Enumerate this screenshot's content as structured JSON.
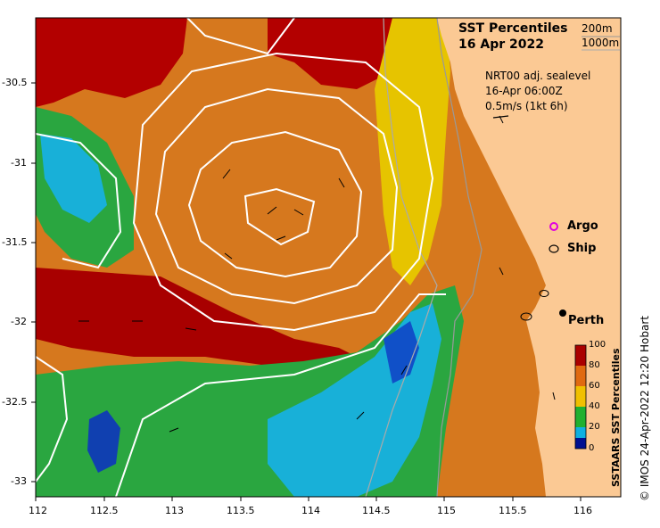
{
  "title": {
    "line1": "SST Percentiles",
    "line2": "16 Apr 2022"
  },
  "depth_legend": {
    "d1": "200m",
    "d2": "1000m"
  },
  "info": {
    "line1": "NRT00 adj. sealevel",
    "line2": "16-Apr 06:00Z",
    "line3": "0.5m/s (1kt 6h)"
  },
  "legend": {
    "argo": "Argo",
    "ship": "Ship",
    "perth": "Perth"
  },
  "colorbar": {
    "title": "SSTAARS SST Percentiles",
    "ticks": [
      "100",
      "80",
      "60",
      "40",
      "20",
      "0"
    ],
    "colors": [
      "#aa0000",
      "#e06a10",
      "#f0c000",
      "#20b030",
      "#10b0e0",
      "#001090"
    ]
  },
  "axes": {
    "x_ticks": [
      "112",
      "112.5",
      "113",
      "113.5",
      "114",
      "114.5",
      "115",
      "115.5",
      "116"
    ],
    "y_ticks": [
      "-30.5",
      "-31",
      "-31.5",
      "-32",
      "-32.5",
      "-33"
    ],
    "lon_range": [
      112,
      116.3
    ],
    "lat_range": [
      -33.1,
      -30.1
    ]
  },
  "credit": "© IMOS 24-Apr-2022 12:20 Hobart",
  "colors": {
    "land": "#fbc994",
    "sst_high": "#b30000",
    "sst_mid": "#d97720",
    "sst_low": "#2aa640",
    "sst_cool": "#18b0d8"
  }
}
